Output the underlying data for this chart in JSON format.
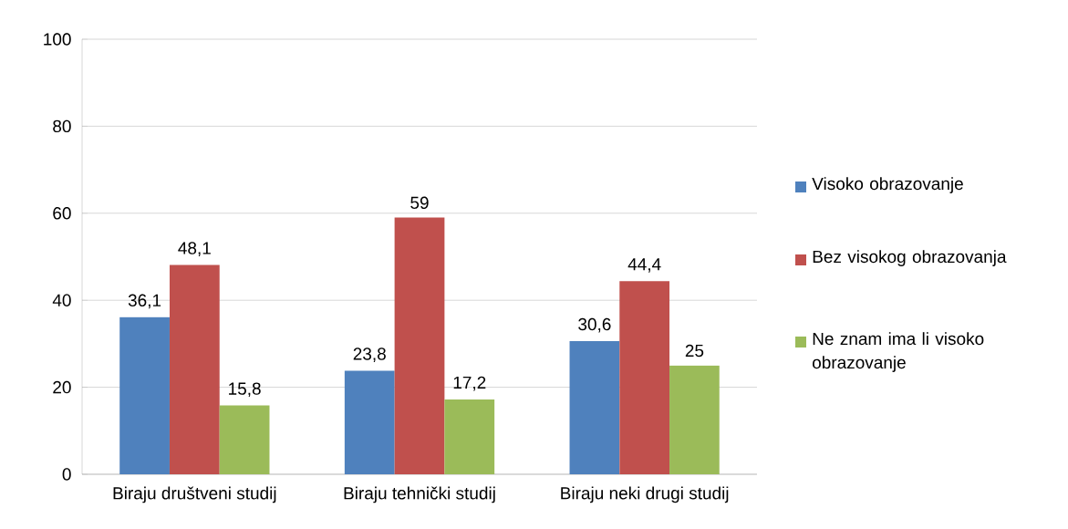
{
  "chart_data": {
    "type": "bar",
    "categories": [
      "Biraju društveni studij",
      "Biraju tehnički studij",
      "Biraju neki drugi studij"
    ],
    "series": [
      {
        "name": "Visoko obrazovanje",
        "color": "#4f81bd",
        "values": [
          36.1,
          23.8,
          30.6
        ],
        "value_labels": [
          "36,1",
          "23,8",
          "30,6"
        ]
      },
      {
        "name": "Bez visokog obrazovanja",
        "color": "#c0504d",
        "values": [
          48.1,
          59,
          44.4
        ],
        "value_labels": [
          "48,1",
          "59",
          "44,4"
        ]
      },
      {
        "name": "Ne znam ima li visoko obrazovanje",
        "color": "#9bbb59",
        "values": [
          15.8,
          17.2,
          25
        ],
        "value_labels": [
          "15,8",
          "17,2",
          "25"
        ]
      }
    ],
    "ylim": [
      0,
      100
    ],
    "yticks": [
      0,
      20,
      40,
      60,
      80,
      100
    ],
    "grid": "y",
    "legend": "right"
  }
}
